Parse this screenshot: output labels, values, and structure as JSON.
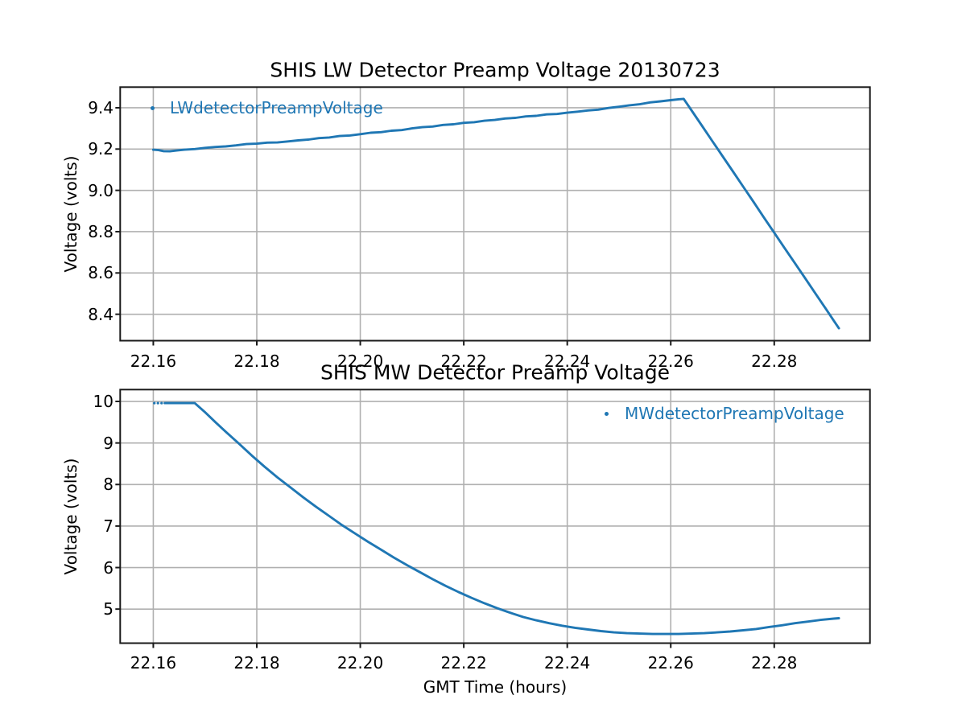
{
  "figure": {
    "background": "#ffffff",
    "accent_blue": "#1f77b4",
    "grid_color": "#b0b0b0",
    "spine_color": "#1a1a1a"
  },
  "chart_data": [
    {
      "id": "lw",
      "type": "line",
      "title": "SHIS LW Detector Preamp Voltage 20130723",
      "xlabel": "",
      "ylabel": "Voltage (volts)",
      "color": "#1f77b4",
      "grid": true,
      "xlim": [
        22.1536,
        22.2985
      ],
      "ylim": [
        8.272,
        9.5
      ],
      "xticks": [
        22.16,
        22.18,
        22.2,
        22.22,
        22.24,
        22.26,
        22.28
      ],
      "xtick_labels": [
        "22.16",
        "22.18",
        "22.20",
        "22.22",
        "22.24",
        "22.26",
        "22.28"
      ],
      "yticks": [
        9.4,
        9.2,
        9.0,
        8.8,
        8.6,
        8.4
      ],
      "ytick_labels": [
        "9.4",
        "9.2",
        "9.0",
        "8.8",
        "8.6",
        "8.4"
      ],
      "legend": {
        "label": "LWdetectorPreampVoltage",
        "position": "upper-left",
        "marker": "dot"
      },
      "series": [
        {
          "name": "LWdetectorPreampVoltage",
          "x": [
            22.16,
            22.161,
            22.162,
            22.1632,
            22.1645,
            22.166,
            22.168,
            22.17,
            22.172,
            22.174,
            22.176,
            22.178,
            22.18,
            22.182,
            22.184,
            22.186,
            22.188,
            22.19,
            22.192,
            22.194,
            22.196,
            22.198,
            22.2,
            22.202,
            22.204,
            22.206,
            22.208,
            22.21,
            22.212,
            22.214,
            22.216,
            22.218,
            22.22,
            22.222,
            22.224,
            22.226,
            22.228,
            22.23,
            22.232,
            22.234,
            22.236,
            22.238,
            22.24,
            22.242,
            22.244,
            22.246,
            22.248,
            22.25,
            22.252,
            22.254,
            22.256,
            22.258,
            22.26,
            22.2615,
            22.2625,
            22.264,
            22.266,
            22.268,
            22.27,
            22.272,
            22.274,
            22.276,
            22.278,
            22.28,
            22.282,
            22.284,
            22.286,
            22.288,
            22.29,
            22.2915,
            22.2925
          ],
          "y": [
            9.197,
            9.195,
            9.19,
            9.189,
            9.193,
            9.197,
            9.2,
            9.206,
            9.21,
            9.213,
            9.218,
            9.224,
            9.226,
            9.231,
            9.232,
            9.237,
            9.242,
            9.246,
            9.253,
            9.256,
            9.263,
            9.266,
            9.272,
            9.279,
            9.282,
            9.289,
            9.292,
            9.3,
            9.306,
            9.309,
            9.317,
            9.32,
            9.327,
            9.33,
            9.337,
            9.341,
            9.348,
            9.351,
            9.358,
            9.361,
            9.368,
            9.37,
            9.376,
            9.381,
            9.387,
            9.391,
            9.399,
            9.405,
            9.412,
            9.417,
            9.426,
            9.431,
            9.437,
            9.441,
            9.443,
            9.388,
            9.314,
            9.24,
            9.166,
            9.092,
            9.018,
            8.944,
            8.869,
            8.795,
            8.721,
            8.647,
            8.573,
            8.499,
            8.425,
            8.369,
            8.332
          ]
        }
      ]
    },
    {
      "id": "mw",
      "type": "line",
      "title": "SHIS MW Detector Preamp Voltage",
      "xlabel": "GMT Time (hours)",
      "ylabel": "Voltage (volts)",
      "color": "#1f77b4",
      "grid": true,
      "xlim": [
        22.1536,
        22.2985
      ],
      "ylim": [
        4.18,
        10.285
      ],
      "xticks": [
        22.16,
        22.18,
        22.2,
        22.22,
        22.24,
        22.26,
        22.28
      ],
      "xtick_labels": [
        "22.16",
        "22.18",
        "22.20",
        "22.22",
        "22.24",
        "22.26",
        "22.28"
      ],
      "yticks": [
        10,
        9,
        8,
        7,
        6,
        5
      ],
      "ytick_labels": [
        "10",
        "9",
        "8",
        "7",
        "6",
        "5"
      ],
      "legend": {
        "label": "MWdetectorPreampVoltage",
        "position": "upper-right",
        "marker": "dot"
      },
      "lead_dots": [
        [
          22.1602,
          9.96
        ],
        [
          22.1609,
          9.96
        ],
        [
          22.1616,
          9.96
        ]
      ],
      "series": [
        {
          "name": "MWdetectorPreampVoltage",
          "x": [
            22.1622,
            22.1635,
            22.165,
            22.1665,
            22.168,
            22.17,
            22.172,
            22.174,
            22.1765,
            22.179,
            22.1815,
            22.184,
            22.1865,
            22.189,
            22.1915,
            22.194,
            22.1965,
            22.199,
            22.2015,
            22.204,
            22.2065,
            22.209,
            22.2115,
            22.214,
            22.2165,
            22.219,
            22.2215,
            22.224,
            22.2265,
            22.229,
            22.2315,
            22.234,
            22.2365,
            22.239,
            22.2415,
            22.244,
            22.2465,
            22.249,
            22.2515,
            22.254,
            22.2565,
            22.259,
            22.2615,
            22.264,
            22.2665,
            22.269,
            22.2715,
            22.274,
            22.2765,
            22.279,
            22.2815,
            22.284,
            22.2865,
            22.289,
            22.2915,
            22.2925
          ],
          "y": [
            9.96,
            9.96,
            9.96,
            9.96,
            9.96,
            9.74,
            9.5,
            9.27,
            8.99,
            8.7,
            8.43,
            8.17,
            7.93,
            7.69,
            7.46,
            7.24,
            7.02,
            6.82,
            6.62,
            6.43,
            6.24,
            6.06,
            5.89,
            5.72,
            5.56,
            5.41,
            5.27,
            5.14,
            5.02,
            4.91,
            4.81,
            4.73,
            4.66,
            4.6,
            4.55,
            4.51,
            4.47,
            4.44,
            4.42,
            4.41,
            4.4,
            4.4,
            4.4,
            4.41,
            4.42,
            4.44,
            4.46,
            4.49,
            4.52,
            4.57,
            4.61,
            4.66,
            4.7,
            4.74,
            4.77,
            4.78
          ]
        }
      ]
    }
  ]
}
